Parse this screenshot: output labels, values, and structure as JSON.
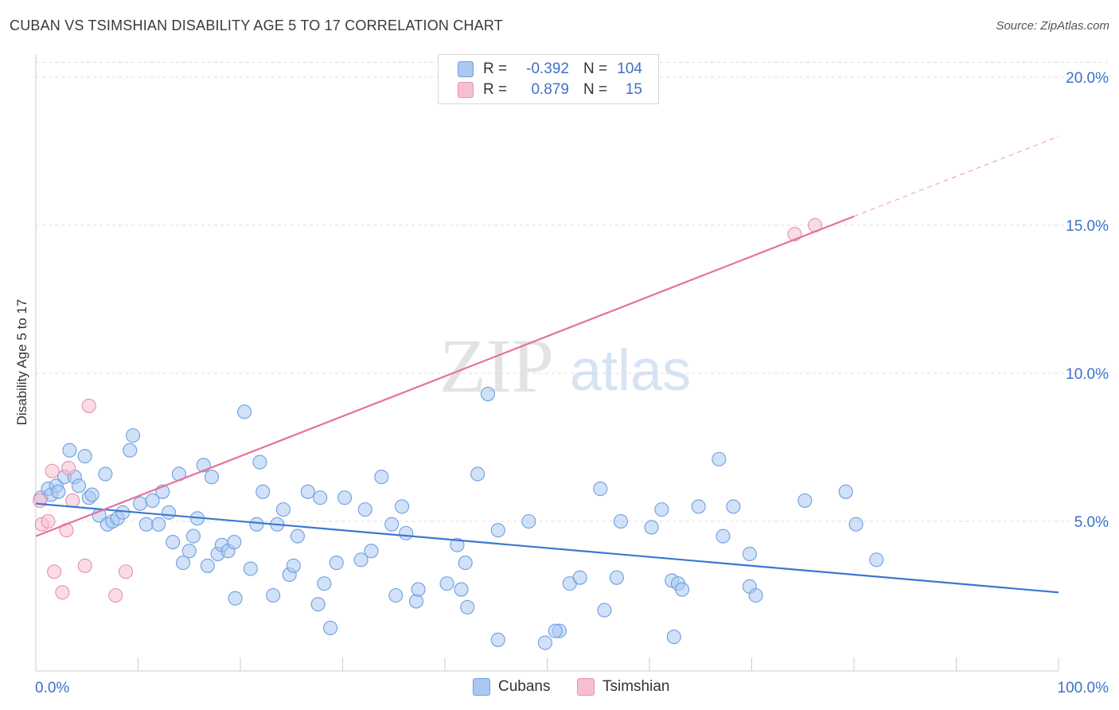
{
  "title": "CUBAN VS TSIMSHIAN DISABILITY AGE 5 TO 17 CORRELATION CHART",
  "source": "Source: ZipAtlas.com",
  "watermark": {
    "zip": "ZIP",
    "atlas": "atlas"
  },
  "legend": {
    "rows": [
      {
        "r_label": "R =",
        "r_value": "-0.392",
        "n_label": "N =",
        "n_value": "104",
        "color": "#a9c8f2"
      },
      {
        "r_label": "R =",
        "r_value": "0.879",
        "n_label": "N =",
        "n_value": "15",
        "color": "#f6bfd0"
      }
    ]
  },
  "bottom_legend": {
    "cubans": "Cubans",
    "tsimshian": "Tsimshian"
  },
  "chart_data": {
    "type": "scatter",
    "title": "CUBAN VS TSIMSHIAN DISABILITY AGE 5 TO 17 CORRELATION CHART",
    "xlabel": "",
    "ylabel": "Disability Age 5 to 17",
    "xlim": [
      0,
      100
    ],
    "ylim": [
      0,
      20.5
    ],
    "y_ticks": [
      5,
      10,
      15,
      20
    ],
    "y_tick_labels": [
      "5.0%",
      "10.0%",
      "15.0%",
      "20.0%"
    ],
    "x_tick_labels": {
      "min": "0.0%",
      "max": "100.0%"
    },
    "grid": "horizontal dashed",
    "legend_position": "top-center",
    "series": [
      {
        "name": "Cubans",
        "color": "#3b78d0",
        "marker_fill": "#a9c8f2",
        "trend": {
          "x": [
            0,
            100
          ],
          "y": [
            5.6,
            2.6
          ]
        },
        "points": [
          [
            0.5,
            5.8
          ],
          [
            1.2,
            6.1
          ],
          [
            1.5,
            5.9
          ],
          [
            2.0,
            6.2
          ],
          [
            2.2,
            6.0
          ],
          [
            2.8,
            6.5
          ],
          [
            3.3,
            7.4
          ],
          [
            3.8,
            6.5
          ],
          [
            4.2,
            6.2
          ],
          [
            4.8,
            7.2
          ],
          [
            5.2,
            5.8
          ],
          [
            5.5,
            5.9
          ],
          [
            6.2,
            5.2
          ],
          [
            6.8,
            6.6
          ],
          [
            7.0,
            4.9
          ],
          [
            7.5,
            5.0
          ],
          [
            8.0,
            5.1
          ],
          [
            8.5,
            5.3
          ],
          [
            9.2,
            7.4
          ],
          [
            9.5,
            7.9
          ],
          [
            10.2,
            5.6
          ],
          [
            10.8,
            4.9
          ],
          [
            11.4,
            5.7
          ],
          [
            12.0,
            4.9
          ],
          [
            12.4,
            6.0
          ],
          [
            13.0,
            5.3
          ],
          [
            13.4,
            4.3
          ],
          [
            14.0,
            6.6
          ],
          [
            14.4,
            3.6
          ],
          [
            15.0,
            4.0
          ],
          [
            15.4,
            4.5
          ],
          [
            15.8,
            5.1
          ],
          [
            16.4,
            6.9
          ],
          [
            16.8,
            3.5
          ],
          [
            17.2,
            6.5
          ],
          [
            17.8,
            3.9
          ],
          [
            18.2,
            4.2
          ],
          [
            18.8,
            4.0
          ],
          [
            19.4,
            4.3
          ],
          [
            19.5,
            2.4
          ],
          [
            20.4,
            8.7
          ],
          [
            21.0,
            3.4
          ],
          [
            21.6,
            4.9
          ],
          [
            21.9,
            7.0
          ],
          [
            22.2,
            6.0
          ],
          [
            23.2,
            2.5
          ],
          [
            23.6,
            4.9
          ],
          [
            24.2,
            5.4
          ],
          [
            24.8,
            3.2
          ],
          [
            25.2,
            3.5
          ],
          [
            25.6,
            4.5
          ],
          [
            26.6,
            6.0
          ],
          [
            27.6,
            2.2
          ],
          [
            27.8,
            5.8
          ],
          [
            28.2,
            2.9
          ],
          [
            28.8,
            1.4
          ],
          [
            29.4,
            3.6
          ],
          [
            30.2,
            5.8
          ],
          [
            31.8,
            3.7
          ],
          [
            32.2,
            5.4
          ],
          [
            32.8,
            4.0
          ],
          [
            33.8,
            6.5
          ],
          [
            34.8,
            4.9
          ],
          [
            35.2,
            2.5
          ],
          [
            35.8,
            5.5
          ],
          [
            36.2,
            4.6
          ],
          [
            37.2,
            2.3
          ],
          [
            37.4,
            2.7
          ],
          [
            40.2,
            2.9
          ],
          [
            41.2,
            4.2
          ],
          [
            41.6,
            2.7
          ],
          [
            42.0,
            3.6
          ],
          [
            43.2,
            6.6
          ],
          [
            42.2,
            2.1
          ],
          [
            44.2,
            9.3
          ],
          [
            45.2,
            4.7
          ],
          [
            45.2,
            1.0
          ],
          [
            48.2,
            5.0
          ],
          [
            49.8,
            0.9
          ],
          [
            51.2,
            1.3
          ],
          [
            52.2,
            2.9
          ],
          [
            53.2,
            3.1
          ],
          [
            55.2,
            6.1
          ],
          [
            55.6,
            2.0
          ],
          [
            56.8,
            3.1
          ],
          [
            57.2,
            5.0
          ],
          [
            60.2,
            4.8
          ],
          [
            61.2,
            5.4
          ],
          [
            62.2,
            3.0
          ],
          [
            62.8,
            2.9
          ],
          [
            62.4,
            1.1
          ],
          [
            63.2,
            2.7
          ],
          [
            64.8,
            5.5
          ],
          [
            66.8,
            7.1
          ],
          [
            67.2,
            4.5
          ],
          [
            68.2,
            5.5
          ],
          [
            69.8,
            3.9
          ],
          [
            69.8,
            2.8
          ],
          [
            70.4,
            2.5
          ],
          [
            75.2,
            5.7
          ],
          [
            79.2,
            6.0
          ],
          [
            80.2,
            4.9
          ],
          [
            82.2,
            3.7
          ],
          [
            50.8,
            1.3
          ]
        ]
      },
      {
        "name": "Tsimshian",
        "color": "#e8709a",
        "marker_fill": "#f6bfd0",
        "trend": {
          "x": [
            0,
            80
          ],
          "y": [
            4.5,
            15.3
          ]
        },
        "trend_extension": {
          "x": [
            80,
            100
          ],
          "y": [
            15.3,
            18.0
          ]
        },
        "points": [
          [
            0.4,
            5.7
          ],
          [
            0.6,
            4.9
          ],
          [
            1.2,
            5.0
          ],
          [
            1.6,
            6.7
          ],
          [
            1.8,
            3.3
          ],
          [
            2.6,
            2.6
          ],
          [
            3.0,
            4.7
          ],
          [
            3.2,
            6.8
          ],
          [
            3.6,
            5.7
          ],
          [
            4.8,
            3.5
          ],
          [
            5.2,
            8.9
          ],
          [
            7.8,
            2.5
          ],
          [
            8.8,
            3.3
          ],
          [
            74.2,
            14.7
          ],
          [
            76.2,
            15.0
          ]
        ]
      }
    ]
  }
}
